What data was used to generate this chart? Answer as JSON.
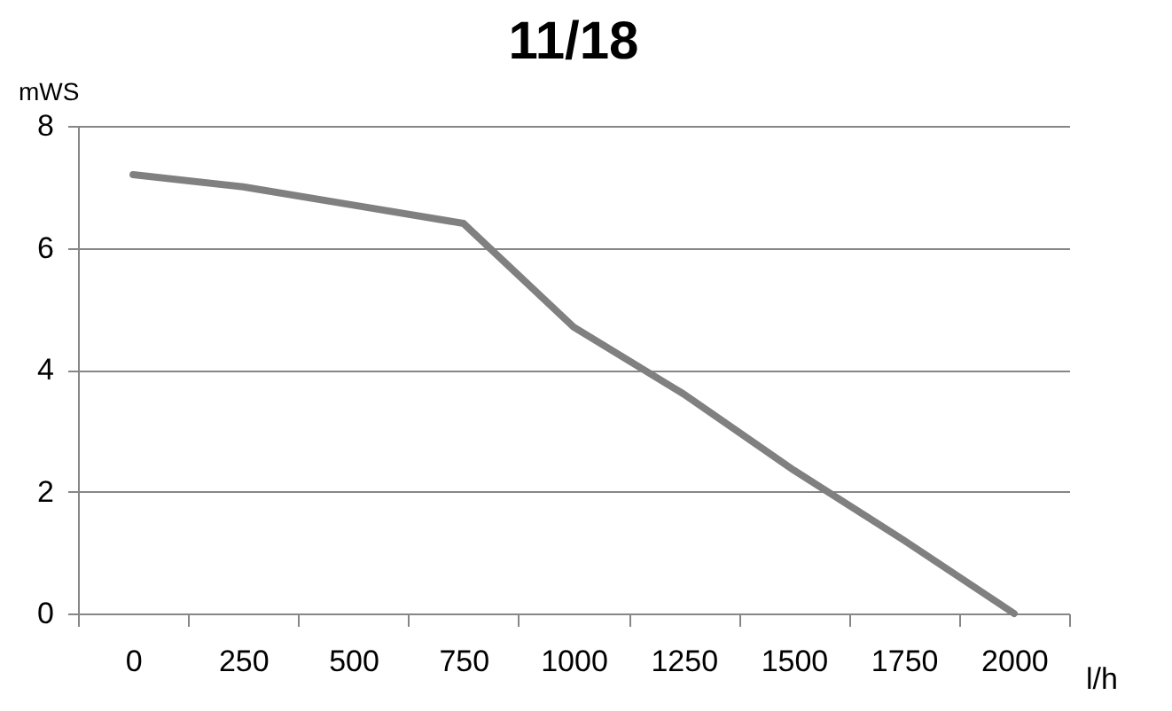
{
  "chart_data": {
    "type": "line",
    "title": "11/18",
    "xlabel": "l/h",
    "ylabel": "mWS",
    "categories": [
      "0",
      "250",
      "500",
      "750",
      "1000",
      "1250",
      "1500",
      "1750",
      "2000"
    ],
    "series": [
      {
        "color": "#808080",
        "values": [
          7.2,
          7.0,
          6.7,
          6.4,
          4.7,
          3.6,
          2.35,
          1.2,
          0
        ]
      }
    ],
    "ylim": [
      0,
      8
    ],
    "yticks": [
      0,
      2,
      4,
      6,
      8
    ],
    "grid": "y",
    "marker": "none",
    "line_style": "solid"
  }
}
